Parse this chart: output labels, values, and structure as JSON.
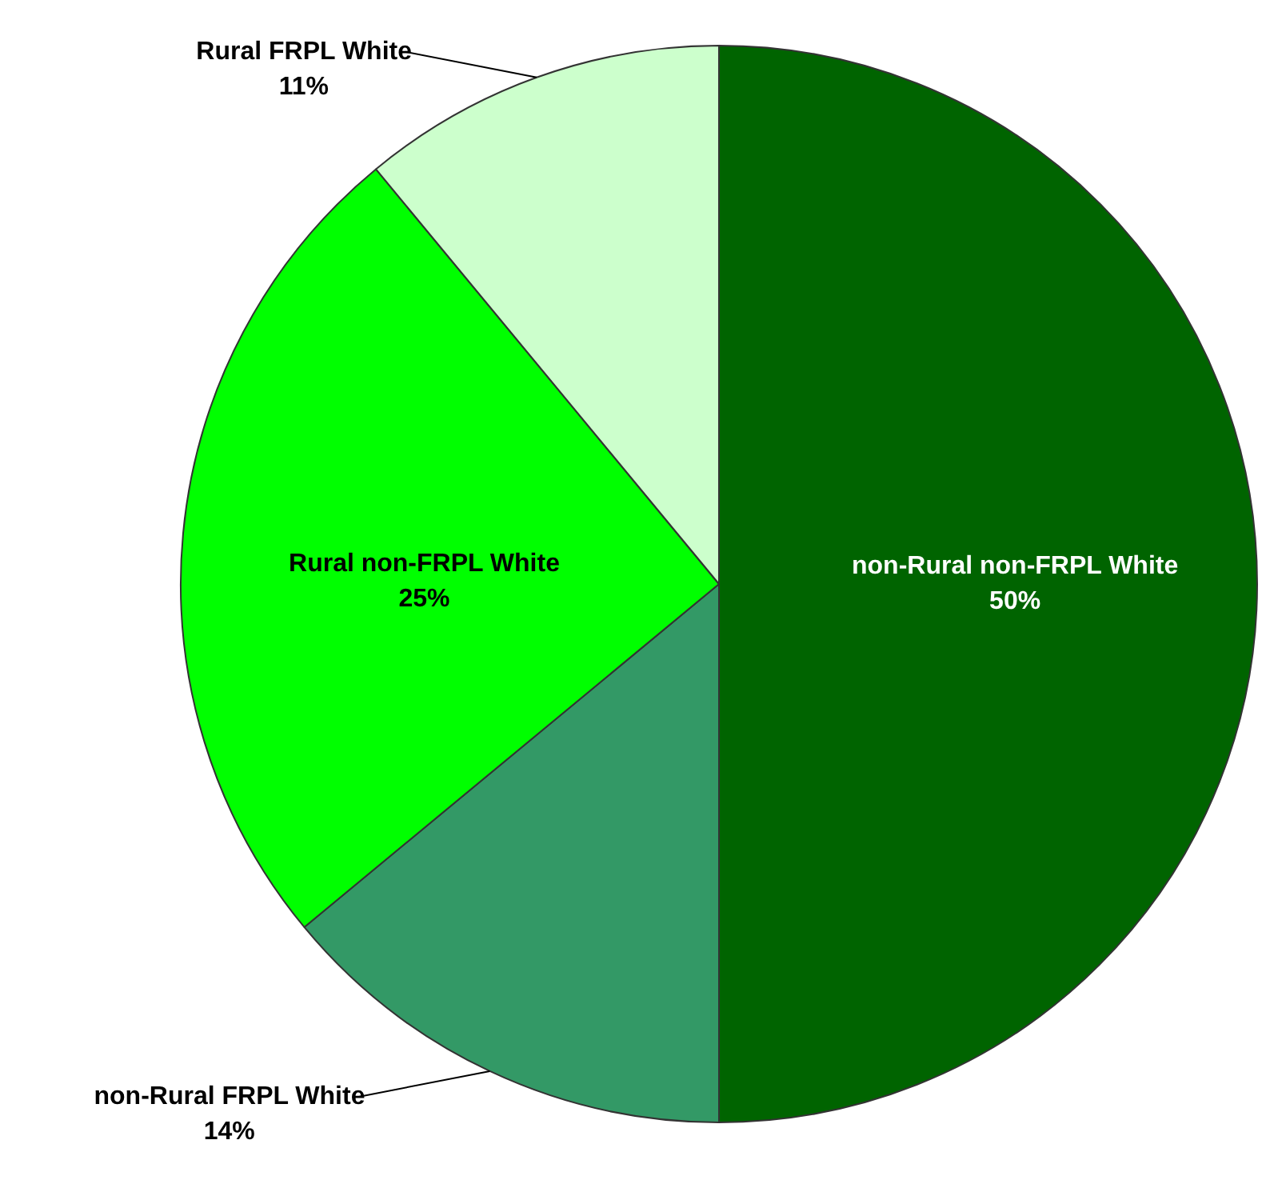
{
  "chart_data": {
    "type": "pie",
    "categories": [
      "non-Rural non-FRPL White",
      "non-Rural FRPL White",
      "Rural non-FRPL White",
      "Rural FRPL White"
    ],
    "values": [
      50,
      14,
      25,
      11
    ],
    "colors": [
      "#006400",
      "#339966",
      "#00ff00",
      "#ccffcc"
    ],
    "value_labels": [
      "50%",
      "14%",
      "25%",
      "11%"
    ],
    "legend": false
  }
}
